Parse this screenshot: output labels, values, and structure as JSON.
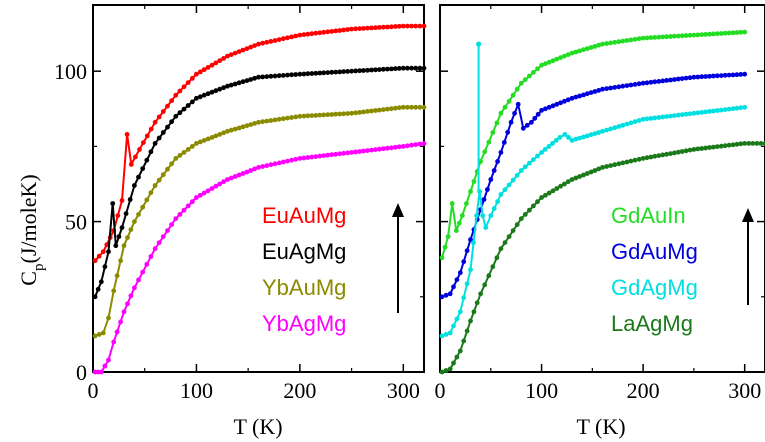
{
  "chart_data": [
    {
      "type": "line",
      "panel": "left",
      "xlabel": "T (K)",
      "ylabel": "C",
      "ylabel_sub": "p",
      "ylabel_rest": "(J/moleK)",
      "xlim": [
        0,
        320
      ],
      "ylim": [
        0,
        122
      ],
      "x_ticks": [
        0,
        100,
        200,
        300
      ],
      "y_ticks": [
        0,
        50,
        100
      ],
      "legend_placement": "lower-right",
      "arrow": "up",
      "series": [
        {
          "name": "EuAuMg",
          "color": "#ff0000",
          "x": [
            2,
            10,
            20,
            28,
            33,
            37,
            45,
            60,
            80,
            100,
            130,
            160,
            200,
            250,
            300,
            320
          ],
          "y": [
            37,
            40,
            47,
            57,
            79,
            69,
            74,
            83,
            92,
            99,
            105,
            109,
            112,
            114,
            115,
            115
          ]
        },
        {
          "name": "EuAgMg",
          "color": "#000000",
          "x": [
            2,
            8,
            15,
            19,
            22,
            28,
            40,
            60,
            80,
            100,
            130,
            160,
            200,
            250,
            300,
            320
          ],
          "y": [
            25,
            30,
            40,
            56,
            42,
            48,
            62,
            76,
            85,
            91,
            95,
            98,
            99,
            100,
            101,
            101
          ]
        },
        {
          "name": "YbAuMg",
          "color": "#8b8b00",
          "x": [
            2,
            10,
            15,
            20,
            30,
            40,
            60,
            80,
            100,
            130,
            160,
            200,
            250,
            300,
            320
          ],
          "y": [
            12,
            13,
            18,
            27,
            42,
            50,
            62,
            71,
            76,
            80,
            83,
            85,
            86,
            88,
            88
          ]
        },
        {
          "name": "YbAgMg",
          "color": "#ff00ff",
          "x": [
            2,
            8,
            15,
            20,
            30,
            40,
            60,
            80,
            100,
            130,
            160,
            200,
            250,
            300,
            320
          ],
          "y": [
            0,
            0,
            4,
            10,
            20,
            28,
            41,
            51,
            58,
            64,
            68,
            71,
            73,
            75,
            76
          ]
        }
      ]
    },
    {
      "type": "line",
      "panel": "right",
      "xlabel": "T (K)",
      "xlim": [
        0,
        320
      ],
      "ylim": [
        0,
        122
      ],
      "x_ticks": [
        0,
        100,
        200,
        300
      ],
      "y_ticks": [
        0,
        50,
        100
      ],
      "legend_placement": "lower-right",
      "arrow": "up",
      "series": [
        {
          "name": "GdAuIn",
          "color": "#22dd22",
          "x": [
            2,
            8,
            12,
            16,
            22,
            30,
            40,
            60,
            80,
            100,
            130,
            160,
            200,
            250,
            300
          ],
          "y": [
            38,
            45,
            56,
            47,
            52,
            60,
            70,
            86,
            96,
            102,
            106,
            109,
            111,
            112,
            113
          ]
        },
        {
          "name": "GdAuMg",
          "color": "#0000dd",
          "x": [
            2,
            10,
            20,
            30,
            40,
            50,
            60,
            70,
            77,
            82,
            90,
            100,
            130,
            160,
            200,
            250,
            300
          ],
          "y": [
            25,
            26,
            33,
            44,
            54,
            64,
            73,
            83,
            89,
            81,
            83,
            87,
            91,
            94,
            96,
            98,
            99
          ]
        },
        {
          "name": "GdAgMg",
          "color": "#00e0e0",
          "x": [
            2,
            10,
            20,
            30,
            36,
            39,
            42,
            45,
            50,
            60,
            80,
            100,
            118,
            123,
            130,
            160,
            200,
            250,
            300
          ],
          "y": [
            12,
            13,
            20,
            34,
            52,
            60,
            52,
            48,
            52,
            59,
            67,
            73,
            78,
            79,
            77,
            80,
            84,
            86,
            88
          ]
        },
        {
          "name": "LaAgMg",
          "color": "#1a7a1a",
          "x": [
            2,
            10,
            20,
            30,
            40,
            60,
            80,
            100,
            130,
            160,
            200,
            250,
            300,
            320
          ],
          "y": [
            0,
            1,
            7,
            17,
            26,
            41,
            51,
            58,
            64,
            68,
            71,
            74,
            76,
            76
          ]
        }
      ],
      "spike": {
        "x": 38,
        "y": 109
      }
    }
  ]
}
